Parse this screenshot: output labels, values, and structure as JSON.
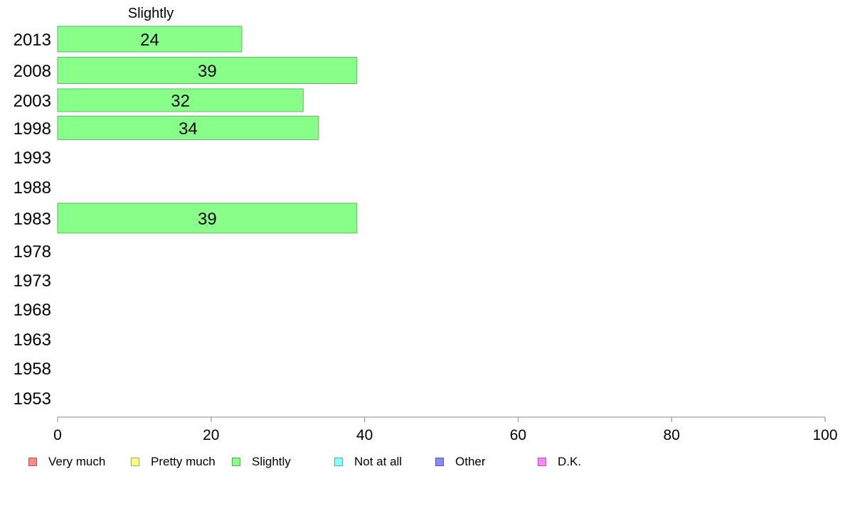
{
  "chart_data": {
    "type": "bar",
    "orientation": "horizontal",
    "title": "Slightly",
    "categories": [
      "2013",
      "2008",
      "2003",
      "1998",
      "1993",
      "1988",
      "1983",
      "1978",
      "1973",
      "1968",
      "1963",
      "1958",
      "1953"
    ],
    "series": [
      {
        "name": "Slightly",
        "color": "#88ff88",
        "values": [
          24,
          39,
          32,
          34,
          null,
          null,
          39,
          null,
          null,
          null,
          null,
          null,
          null
        ]
      }
    ],
    "xlim": [
      0,
      100
    ],
    "xticks": [
      0,
      20,
      40,
      60,
      80,
      100
    ],
    "grid": false,
    "legend_position": "bottom",
    "legend": [
      {
        "label": "Very much",
        "color": "#ff8888"
      },
      {
        "label": "Pretty much",
        "color": "#ffff88"
      },
      {
        "label": "Slightly",
        "color": "#88ff88"
      },
      {
        "label": "Not at all",
        "color": "#88ffff"
      },
      {
        "label": "Other",
        "color": "#8888ff"
      },
      {
        "label": "D.K.",
        "color": "#ff88ff"
      }
    ]
  }
}
